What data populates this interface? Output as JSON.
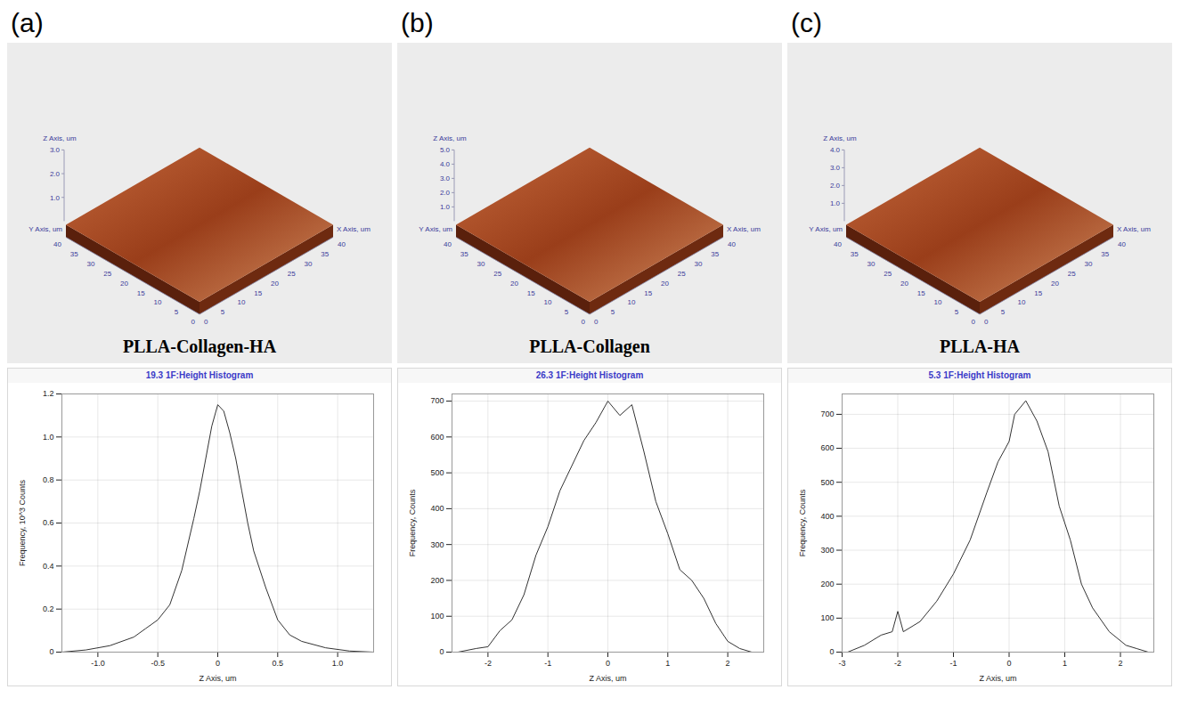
{
  "panels": [
    {
      "letter": "(a)",
      "sample": "PLLA-Collagen-HA",
      "surface": {
        "x_label": "X Axis, um",
        "y_label": "Y Axis, um",
        "z_label": "Z Axis, um",
        "xy_lim": [
          0,
          40
        ],
        "xy_ticks": [
          0,
          5,
          10,
          15,
          20,
          25,
          30,
          35,
          40
        ],
        "z_ticks": [
          {
            "value": 1,
            "label": "1.0"
          },
          {
            "value": 2,
            "label": "2.0"
          },
          {
            "value": 3,
            "label": "3.0"
          }
        ]
      }
    },
    {
      "letter": "(b)",
      "sample": "PLLA-Collagen",
      "surface": {
        "x_label": "X Axis, um",
        "y_label": "Y Axis, um",
        "z_label": "Z Axis, um",
        "xy_lim": [
          0,
          40
        ],
        "xy_ticks": [
          0,
          5,
          10,
          15,
          20,
          25,
          30,
          35,
          40
        ],
        "z_ticks": [
          {
            "value": 1,
            "label": "1.0"
          },
          {
            "value": 2,
            "label": "2.0"
          },
          {
            "value": 3,
            "label": "3.0"
          },
          {
            "value": 4,
            "label": "4.0"
          },
          {
            "value": 5,
            "label": "5.0"
          }
        ]
      }
    },
    {
      "letter": "(c)",
      "sample": "PLLA-HA",
      "surface": {
        "x_label": "X Axis, um",
        "y_label": "Y Axis, um",
        "z_label": "Z Axis, um",
        "xy_lim": [
          0,
          40
        ],
        "xy_ticks": [
          0,
          5,
          10,
          15,
          20,
          25,
          30,
          35,
          40
        ],
        "z_ticks": [
          {
            "value": 1,
            "label": "1.0"
          },
          {
            "value": 2,
            "label": "2.0"
          },
          {
            "value": 3,
            "label": "3.0"
          },
          {
            "value": 4,
            "label": "4.0"
          }
        ]
      }
    }
  ],
  "chart_data": [
    {
      "type": "line",
      "title": "19.3 1F:Height Histogram",
      "x_label": "Z Axis, um",
      "y_label": "Frequency, 10^3 Counts",
      "color": "#333333",
      "grid": true,
      "x": [
        -1.3,
        -1.1,
        -0.9,
        -0.7,
        -0.6,
        -0.5,
        -0.4,
        -0.3,
        -0.2,
        -0.15,
        -0.1,
        -0.05,
        0,
        0.05,
        0.1,
        0.15,
        0.2,
        0.25,
        0.3,
        0.4,
        0.5,
        0.6,
        0.7,
        0.9,
        1.1,
        1.3
      ],
      "values": [
        0,
        0.01,
        0.03,
        0.07,
        0.11,
        0.15,
        0.22,
        0.38,
        0.62,
        0.75,
        0.9,
        1.05,
        1.15,
        1.12,
        1.02,
        0.9,
        0.75,
        0.6,
        0.47,
        0.3,
        0.15,
        0.08,
        0.05,
        0.02,
        0.005,
        0
      ],
      "xlim": [
        -1.3,
        1.3
      ],
      "xticks": [
        {
          "value": -1,
          "label": "-1.0"
        },
        -0.5,
        0,
        0.5,
        {
          "value": 1,
          "label": "1.0"
        }
      ],
      "ylim": [
        0,
        1.2
      ],
      "yticks": [
        0,
        0.2,
        0.4,
        0.6,
        0.8,
        {
          "value": 1,
          "label": "1.0"
        },
        1.2
      ]
    },
    {
      "type": "line",
      "title": "26.3 1F:Height Histogram",
      "x_label": "Z Axis, um",
      "y_label": "Frequency, Counts",
      "color": "#333333",
      "grid": true,
      "x": [
        -2.5,
        -2.2,
        -2.0,
        -1.8,
        -1.6,
        -1.4,
        -1.2,
        -1.0,
        -0.8,
        -0.6,
        -0.4,
        -0.2,
        0,
        0.2,
        0.4,
        0.6,
        0.8,
        1.0,
        1.2,
        1.4,
        1.6,
        1.8,
        2.0,
        2.2,
        2.4
      ],
      "values": [
        0,
        10,
        15,
        60,
        90,
        160,
        270,
        350,
        450,
        520,
        590,
        640,
        700,
        660,
        690,
        560,
        420,
        330,
        230,
        200,
        150,
        80,
        30,
        10,
        0
      ],
      "xlim": [
        -2.6,
        2.6
      ],
      "xticks": [
        -2,
        -1,
        0,
        1,
        2
      ],
      "ylim": [
        0,
        720
      ],
      "yticks": [
        0,
        100,
        200,
        300,
        400,
        500,
        600,
        700
      ]
    },
    {
      "type": "line",
      "title": "5.3 1F:Height Histogram",
      "x_label": "Z Axis, um",
      "y_label": "Frequency, Counts",
      "color": "#333333",
      "grid": true,
      "x": [
        -2.9,
        -2.6,
        -2.3,
        -2.1,
        -2.0,
        -1.9,
        -1.6,
        -1.3,
        -1.0,
        -0.7,
        -0.4,
        -0.2,
        0,
        0.1,
        0.3,
        0.5,
        0.7,
        0.9,
        1.1,
        1.3,
        1.5,
        1.8,
        2.1,
        2.3,
        2.5
      ],
      "values": [
        0,
        20,
        50,
        60,
        120,
        60,
        90,
        150,
        230,
        330,
        470,
        560,
        620,
        700,
        740,
        680,
        590,
        430,
        330,
        200,
        130,
        60,
        20,
        10,
        0
      ],
      "xlim": [
        -3,
        2.6
      ],
      "xticks": [
        -3,
        -2,
        -1,
        0,
        1,
        2
      ],
      "ylim": [
        0,
        760
      ],
      "yticks": [
        0,
        100,
        200,
        300,
        400,
        500,
        600,
        700
      ]
    }
  ]
}
